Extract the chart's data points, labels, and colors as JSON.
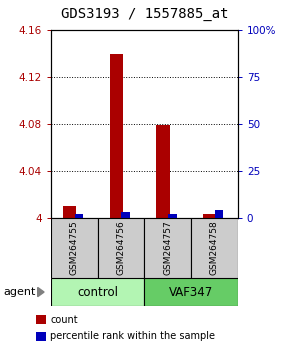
{
  "title": "GDS3193 / 1557885_at",
  "samples": [
    "GSM264755",
    "GSM264756",
    "GSM264757",
    "GSM264758"
  ],
  "red_values": [
    4.01,
    4.14,
    4.079,
    4.003
  ],
  "blue_values": [
    2.0,
    3.0,
    2.0,
    4.0
  ],
  "ylim_left": [
    4.0,
    4.16
  ],
  "ylim_right": [
    0,
    100
  ],
  "yticks_left": [
    4.0,
    4.04,
    4.08,
    4.12,
    4.16
  ],
  "ytick_labels_left": [
    "4",
    "4.04",
    "4.08",
    "4.12",
    "4.16"
  ],
  "yticks_right": [
    0,
    25,
    50,
    75,
    100
  ],
  "ytick_labels_right": [
    "0",
    "25",
    "50",
    "75",
    "100%"
  ],
  "groups": [
    {
      "label": "control",
      "indices": [
        0,
        1
      ],
      "color": "#b3f5b3"
    },
    {
      "label": "VAF347",
      "indices": [
        2,
        3
      ],
      "color": "#66cc66"
    }
  ],
  "red_color": "#aa0000",
  "blue_color": "#0000bb",
  "bg_color": "#ffffff",
  "sample_bg_color": "#cccccc",
  "legend_items": [
    {
      "label": "count",
      "color": "#aa0000"
    },
    {
      "label": "percentile rank within the sample",
      "color": "#0000bb"
    }
  ],
  "agent_label": "agent",
  "title_fontsize": 10,
  "tick_fontsize": 7.5,
  "sample_fontsize": 6.5,
  "group_fontsize": 8.5,
  "legend_fontsize": 7
}
